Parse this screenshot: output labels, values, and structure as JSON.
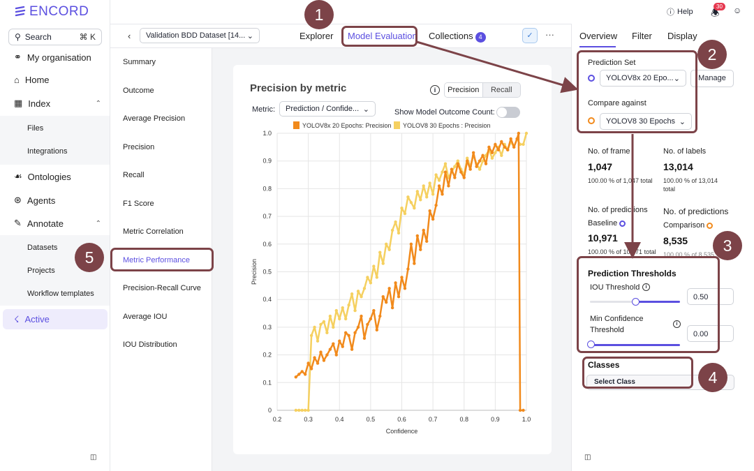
{
  "brand": "ENCORD",
  "leftnav": {
    "search_label": "Search",
    "search_shortcut": "⌘ K",
    "items": [
      {
        "label": "My organisation"
      },
      {
        "label": "Home"
      },
      {
        "label": "Index"
      },
      {
        "label": "Ontologies"
      },
      {
        "label": "Agents"
      },
      {
        "label": "Annotate"
      },
      {
        "label": "Active"
      }
    ],
    "index_sub": [
      "Files",
      "Integrations"
    ],
    "annotate_sub": [
      "Datasets",
      "Projects",
      "Workflow templates"
    ]
  },
  "topbar": {
    "help": "Help",
    "notifications": "30"
  },
  "header": {
    "dataset": "Validation BDD Dataset [14...",
    "tabs": [
      {
        "label": "Explorer"
      },
      {
        "label": "Model Evaluation"
      },
      {
        "label": "Collections"
      }
    ],
    "collections_count": "4"
  },
  "subnav": {
    "items": [
      "Summary",
      "Outcome",
      "Average Precision",
      "Precision",
      "Recall",
      "F1 Score",
      "Metric Correlation",
      "Metric Performance",
      "Precision-Recall Curve",
      "Average IOU",
      "IOU Distribution"
    ],
    "active": "Metric Performance"
  },
  "card": {
    "title": "Precision by metric",
    "seg_precision": "Precision",
    "seg_recall": "Recall",
    "metric_label": "Metric:",
    "metric_value": "Prediction / Confide...",
    "toggle_label": "Show Model Outcome Count:"
  },
  "chart_data": {
    "type": "line",
    "xlabel": "Confidence",
    "ylabel": "Precision",
    "xlim": [
      0.2,
      1.0
    ],
    "ylim": [
      0,
      1.0
    ],
    "xticks": [
      "0.2",
      "0.3",
      "0.4",
      "0.5",
      "0.6",
      "0.7",
      "0.8",
      "0.9",
      "1.0"
    ],
    "yticks": [
      "0",
      "0.1",
      "0.2",
      "0.3",
      "0.4",
      "0.5",
      "0.6",
      "0.7",
      "0.8",
      "0.9",
      "1.0"
    ],
    "grid": true,
    "legend_position": "top",
    "series": [
      {
        "name": "YOLOV8x 20 Epochs: Precision",
        "color": "#f18a1c",
        "x": [
          0.26,
          0.27,
          0.28,
          0.29,
          0.3,
          0.31,
          0.32,
          0.33,
          0.34,
          0.35,
          0.36,
          0.37,
          0.38,
          0.39,
          0.4,
          0.41,
          0.42,
          0.43,
          0.44,
          0.45,
          0.46,
          0.47,
          0.48,
          0.49,
          0.5,
          0.51,
          0.52,
          0.53,
          0.54,
          0.55,
          0.56,
          0.57,
          0.58,
          0.59,
          0.6,
          0.61,
          0.62,
          0.63,
          0.64,
          0.65,
          0.66,
          0.67,
          0.68,
          0.69,
          0.7,
          0.71,
          0.72,
          0.73,
          0.74,
          0.75,
          0.76,
          0.77,
          0.78,
          0.79,
          0.8,
          0.81,
          0.82,
          0.83,
          0.84,
          0.85,
          0.86,
          0.87,
          0.88,
          0.89,
          0.9,
          0.91,
          0.92,
          0.93,
          0.94,
          0.95,
          0.96,
          0.97,
          0.975,
          0.98,
          0.99
        ],
        "values": [
          0.12,
          0.13,
          0.14,
          0.13,
          0.17,
          0.15,
          0.19,
          0.17,
          0.21,
          0.18,
          0.2,
          0.22,
          0.24,
          0.2,
          0.25,
          0.23,
          0.28,
          0.27,
          0.22,
          0.28,
          0.3,
          0.34,
          0.26,
          0.31,
          0.33,
          0.36,
          0.29,
          0.34,
          0.41,
          0.39,
          0.44,
          0.37,
          0.46,
          0.41,
          0.48,
          0.44,
          0.51,
          0.6,
          0.53,
          0.63,
          0.58,
          0.65,
          0.61,
          0.72,
          0.69,
          0.74,
          0.81,
          0.78,
          0.86,
          0.81,
          0.87,
          0.84,
          0.89,
          0.86,
          0.84,
          0.9,
          0.87,
          0.93,
          0.88,
          0.9,
          0.92,
          0.89,
          0.95,
          0.93,
          0.96,
          0.94,
          0.97,
          0.95,
          0.94,
          0.98,
          0.95,
          0.98,
          1.0,
          0.0,
          0.0
        ]
      },
      {
        "name": "YOLOV8 30 Epochs : Precision",
        "color": "#f5d060",
        "x": [
          0.26,
          0.27,
          0.28,
          0.29,
          0.3,
          0.31,
          0.32,
          0.33,
          0.34,
          0.35,
          0.36,
          0.37,
          0.38,
          0.39,
          0.4,
          0.41,
          0.42,
          0.43,
          0.44,
          0.45,
          0.46,
          0.47,
          0.48,
          0.49,
          0.5,
          0.51,
          0.52,
          0.53,
          0.54,
          0.55,
          0.56,
          0.57,
          0.58,
          0.59,
          0.6,
          0.61,
          0.62,
          0.63,
          0.64,
          0.65,
          0.66,
          0.67,
          0.68,
          0.69,
          0.7,
          0.71,
          0.72,
          0.73,
          0.74,
          0.75,
          0.76,
          0.77,
          0.78,
          0.79,
          0.8,
          0.81,
          0.82,
          0.83,
          0.84,
          0.85,
          0.86,
          0.87,
          0.88,
          0.89,
          0.9,
          0.91,
          0.92,
          0.93,
          0.94,
          0.95,
          0.96,
          0.97,
          0.98,
          0.99,
          1.0
        ],
        "values": [
          0.0,
          0.0,
          0.0,
          0.0,
          0.0,
          0.27,
          0.3,
          0.25,
          0.31,
          0.32,
          0.28,
          0.34,
          0.3,
          0.36,
          0.33,
          0.37,
          0.33,
          0.38,
          0.42,
          0.36,
          0.43,
          0.41,
          0.44,
          0.48,
          0.46,
          0.52,
          0.48,
          0.57,
          0.53,
          0.6,
          0.58,
          0.65,
          0.68,
          0.64,
          0.73,
          0.71,
          0.77,
          0.75,
          0.73,
          0.79,
          0.76,
          0.81,
          0.77,
          0.82,
          0.78,
          0.85,
          0.83,
          0.86,
          0.89,
          0.84,
          0.86,
          0.88,
          0.9,
          0.87,
          0.85,
          0.91,
          0.88,
          0.92,
          0.89,
          0.87,
          0.9,
          0.92,
          0.94,
          0.91,
          0.93,
          0.95,
          0.92,
          0.96,
          0.94,
          0.97,
          0.95,
          0.98,
          0.96,
          0.96,
          1.0
        ]
      }
    ]
  },
  "right": {
    "tabs": [
      "Overview",
      "Filter",
      "Display"
    ],
    "prediction_set_label": "Prediction Set",
    "prediction_set_value": "YOLOV8x 20 Epo...",
    "manage": "Manage",
    "compare_label": "Compare against",
    "compare_value": "YOLOV8 30 Epochs",
    "frames_h": "No. of frame",
    "frames_v": "1,047",
    "frames_s": "100.00 % of 1,047 total",
    "labels_h": "No. of labels",
    "labels_v": "13,014",
    "labels_s1": "100.00 % of 13,014",
    "labels_s2": "total",
    "pred_h1": "No. of predictions",
    "baseline": "Baseline",
    "pred_v1": "10,971",
    "pred_s1": "100.00 % of 10,971 total",
    "pred_h2": "No. of predictions",
    "comparison": "Comparison",
    "pred_v2": "8,535",
    "pred_s2": "100.00 % of 8,535",
    "thresholds_title": "Prediction Thresholds",
    "iou_label": "IOU Threshold",
    "iou_value": "0.50",
    "conf_label1": "Min Confidence",
    "conf_label2": "Threshold",
    "conf_value": "0.00",
    "classes_title": "Classes",
    "select_class": "Select Class",
    "colors": {
      "accent": "#5b4fe0",
      "comparison": "#f18a1c"
    }
  },
  "annotations": [
    "1",
    "2",
    "3",
    "4",
    "5"
  ]
}
